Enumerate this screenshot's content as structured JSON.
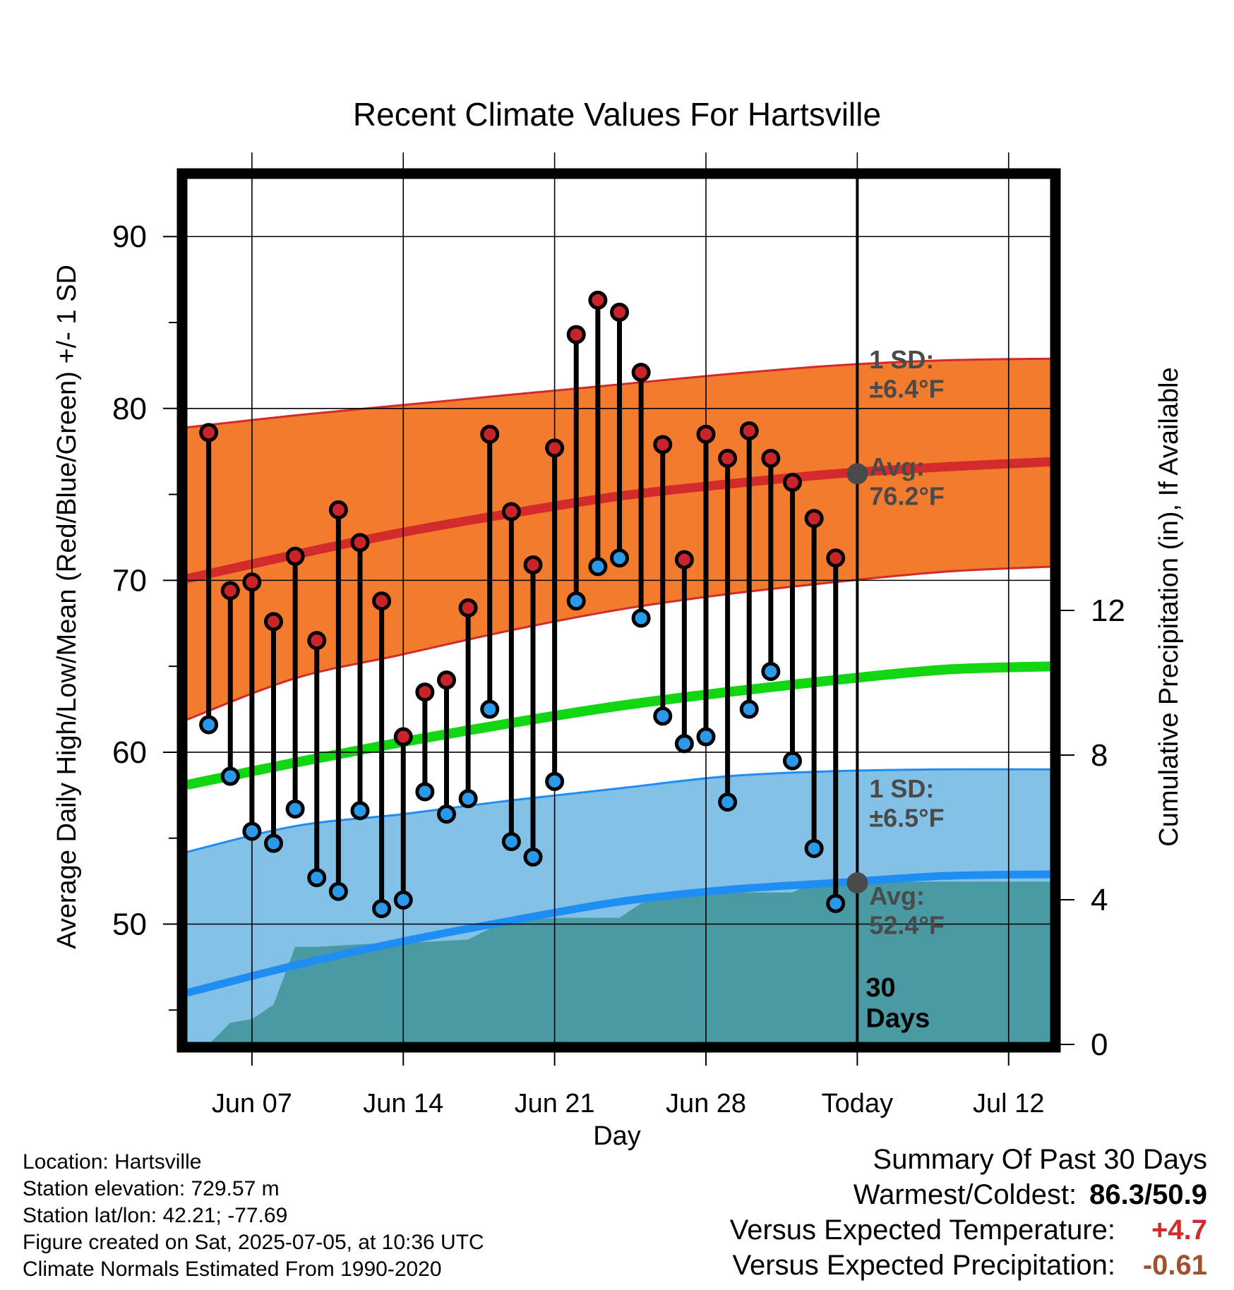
{
  "chart_data": {
    "type": "line",
    "title": "Recent Climate Values For Hartsville",
    "xlabel": "Day",
    "ylabel_left": "Average Daily High/Low/Mean (Red/Blue/Green) +/- 1 SD",
    "ylabel_right": "Cumulative Precipitation (in), If Available",
    "ylim": [
      43,
      93.5
    ],
    "ylim_right": [
      0,
      24
    ],
    "y_ticks": [
      50,
      60,
      70,
      80,
      90
    ],
    "y_ticks_right": [
      0,
      4,
      8,
      12
    ],
    "x_range_days": [
      "2025-06-04",
      "2025-07-14"
    ],
    "x_ticks": [
      {
        "date": "2025-06-07",
        "label": "Jun 07"
      },
      {
        "date": "2025-06-14",
        "label": "Jun 14"
      },
      {
        "date": "2025-06-21",
        "label": "Jun 21"
      },
      {
        "date": "2025-06-28",
        "label": "Jun 28"
      },
      {
        "date": "2025-07-05",
        "label": "Today"
      },
      {
        "date": "2025-07-12",
        "label": "Jul 12"
      }
    ],
    "today_date": "2025-07-05",
    "period_label": "30\nDays",
    "grid": true,
    "daily": {
      "dates": [
        "2025-06-05",
        "2025-06-06",
        "2025-06-07",
        "2025-06-08",
        "2025-06-09",
        "2025-06-10",
        "2025-06-11",
        "2025-06-12",
        "2025-06-13",
        "2025-06-14",
        "2025-06-15",
        "2025-06-16",
        "2025-06-17",
        "2025-06-18",
        "2025-06-19",
        "2025-06-20",
        "2025-06-21",
        "2025-06-22",
        "2025-06-23",
        "2025-06-24",
        "2025-06-25",
        "2025-06-26",
        "2025-06-27",
        "2025-06-28",
        "2025-06-29",
        "2025-06-30",
        "2025-07-01",
        "2025-07-02",
        "2025-07-03",
        "2025-07-04"
      ],
      "high": [
        78.6,
        69.4,
        69.9,
        67.6,
        71.4,
        66.5,
        74.1,
        72.2,
        68.8,
        60.9,
        63.5,
        64.2,
        68.4,
        78.5,
        74.0,
        70.9,
        77.7,
        84.3,
        86.3,
        85.6,
        82.1,
        77.9,
        71.2,
        78.5,
        77.1,
        78.7,
        77.1,
        75.7,
        73.6,
        71.3
      ],
      "low": [
        61.6,
        58.6,
        55.4,
        54.7,
        56.7,
        52.7,
        51.9,
        56.6,
        50.9,
        51.4,
        57.7,
        56.4,
        57.3,
        62.5,
        54.8,
        53.9,
        58.3,
        68.8,
        70.8,
        71.3,
        67.8,
        62.1,
        60.5,
        60.9,
        57.1,
        62.5,
        64.7,
        59.5,
        54.4,
        51.2
      ]
    },
    "normals": {
      "dates": [
        "2025-06-04",
        "2025-06-09",
        "2025-06-14",
        "2025-06-19",
        "2025-06-24",
        "2025-06-29",
        "2025-07-04",
        "2025-07-09",
        "2025-07-14"
      ],
      "avg_high": [
        70.1,
        71.5,
        72.8,
        73.9,
        74.9,
        75.6,
        76.2,
        76.6,
        76.9
      ],
      "high_sd_upper": [
        78.9,
        79.6,
        80.2,
        80.8,
        81.4,
        82.0,
        82.5,
        82.8,
        82.9
      ],
      "high_sd_lower": [
        61.9,
        64.3,
        65.7,
        67.1,
        68.3,
        69.2,
        69.9,
        70.5,
        70.8
      ],
      "avg_mean": [
        58.1,
        59.4,
        60.6,
        61.7,
        62.7,
        63.5,
        64.2,
        64.8,
        65.0
      ],
      "avg_low": [
        46.0,
        47.6,
        49.0,
        50.2,
        51.3,
        52.0,
        52.4,
        52.8,
        52.9
      ],
      "low_sd_upper": [
        54.2,
        55.7,
        56.4,
        57.2,
        57.9,
        58.6,
        58.9,
        59.0,
        59.0
      ],
      "low_sd_lower": [
        43.0,
        43.0,
        43.0,
        43.0,
        43.0,
        43.0,
        43.0,
        43.0,
        43.0
      ]
    },
    "precip": {
      "dates": [
        "2025-06-05",
        "2025-06-06",
        "2025-06-07",
        "2025-06-08",
        "2025-06-09",
        "2025-06-10",
        "2025-06-13",
        "2025-06-14",
        "2025-06-17",
        "2025-06-18",
        "2025-06-19",
        "2025-06-21",
        "2025-06-24",
        "2025-06-25",
        "2025-06-26",
        "2025-06-27",
        "2025-06-28",
        "2025-07-02",
        "2025-07-03",
        "2025-07-14"
      ],
      "cumulative": [
        0.0,
        0.6,
        0.7,
        1.1,
        2.7,
        2.7,
        2.8,
        2.8,
        2.9,
        3.2,
        3.4,
        3.5,
        3.5,
        3.9,
        4.1,
        4.1,
        4.2,
        4.2,
        4.5,
        4.5
      ]
    },
    "annotations": {
      "high_sd": "1 SD:\n±6.4°F",
      "high_avg": "Avg:\n76.2°F",
      "low_sd": "1 SD:\n±6.5°F",
      "low_avg": "Avg:\n52.4°F",
      "today_high_avg_value": 76.2,
      "today_low_avg_value": 52.4
    },
    "colors": {
      "high_band": "#f37b2e",
      "high_line": "#d32b2b",
      "low_band": "#83c1e6",
      "low_line": "#1f8ef2",
      "mean_line": "#12d612",
      "precip": "#4a9aa3",
      "high_dot": "#c9242a",
      "low_dot": "#2b99ea",
      "annot": "#4a4a4a",
      "today_marker": "#4a4a4a"
    }
  },
  "info": {
    "location": "Location: Hartsville",
    "elevation": "Station elevation: 729.57 m",
    "latlon": "Station lat/lon: 42.21; -77.69",
    "created": "Figure created on Sat, 2025-07-05, at 10:36 UTC",
    "normals": "Climate Normals Estimated From 1990-2020"
  },
  "summary": {
    "title": "Summary Of Past 30 Days",
    "warm_cold_label": "Warmest/Coldest:",
    "warm_cold_value": "86.3/50.9",
    "temp_label": "Versus Expected Temperature:",
    "temp_value": "+4.7",
    "temp_color": "#d12b2b",
    "precip_label": "Versus Expected Precipitation:",
    "precip_value": "-0.61",
    "precip_color": "#a0522d"
  }
}
